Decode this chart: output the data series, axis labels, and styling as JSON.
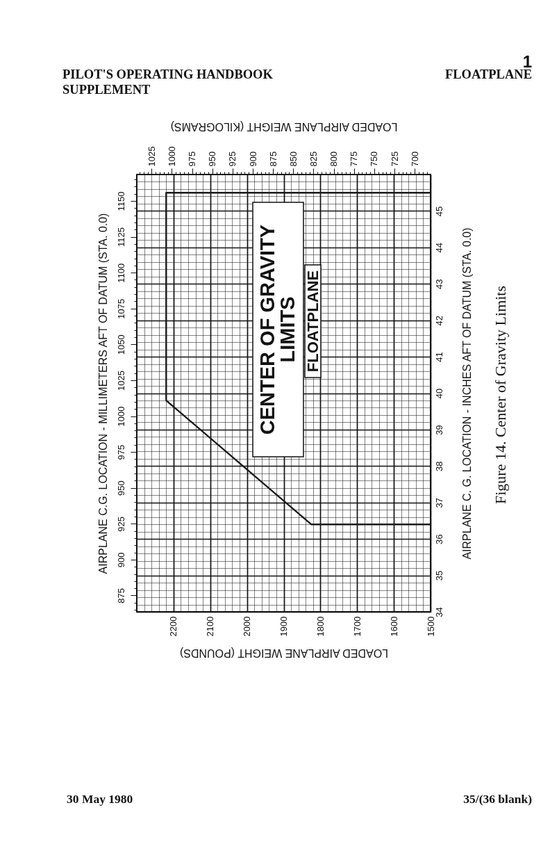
{
  "chart_data": {
    "type": "line",
    "title": "CENTER OF GRAVITY LIMITS",
    "subtitle": "FLOATPLANE",
    "xlabel": "LOADED AIRPLANE WEIGHT (POUNDS)",
    "x2label": "LOADED AIRPLANE WEIGHT (KILOGRAMS)",
    "ylabel": "AIRPLANE C.G. LOCATION - MILLIMETERS AFT OF DATUM (STA. 0.0)",
    "y2label": "AIRPLANE C. G. LOCATION - INCHES AFT OF DATUM (STA. 0.0)",
    "annotations": [
      "1",
      "PILOT'S OPERATING HANDBOOK SUPPLEMENT",
      "FLOATPLANE",
      "Figure 14.  Center of Gravity Limits",
      "30 May 1980",
      "35/(36 blank)"
    ],
    "series": [
      {
        "x": [
          1500,
          1825,
          2220,
          2220,
          1500
        ],
        "values": [
          36.4,
          36.4,
          39.8,
          45.5,
          45.5
        ],
        "color": "#1a1a1a",
        "axis": "y2"
      }
    ],
    "xlim": [
      2300,
      1500
    ],
    "xticks": [
      {
        "value": 2280,
        "label": null
      },
      {
        "value": 2260,
        "label": null
      },
      {
        "value": 2240,
        "label": null
      },
      {
        "value": 2220,
        "label": null
      },
      2200,
      {
        "value": 2180,
        "label": null
      },
      {
        "value": 2160,
        "label": null
      },
      {
        "value": 2140,
        "label": null
      },
      {
        "value": 2120,
        "label": null
      },
      2100,
      {
        "value": 2080,
        "label": null
      },
      {
        "value": 2060,
        "label": null
      },
      {
        "value": 2040,
        "label": null
      },
      {
        "value": 2020,
        "label": null
      },
      2000,
      {
        "value": 1980,
        "label": null
      },
      {
        "value": 1960,
        "label": null
      },
      {
        "value": 1940,
        "label": null
      },
      {
        "value": 1920,
        "label": null
      },
      1900,
      {
        "value": 1880,
        "label": null
      },
      {
        "value": 1860,
        "label": null
      },
      {
        "value": 1840,
        "label": null
      },
      {
        "value": 1820,
        "label": null
      },
      1800,
      {
        "value": 1780,
        "label": null
      },
      {
        "value": 1760,
        "label": null
      },
      {
        "value": 1740,
        "label": null
      },
      {
        "value": 1720,
        "label": null
      },
      1700,
      {
        "value": 1680,
        "label": null
      },
      {
        "value": 1660,
        "label": null
      },
      {
        "value": 1640,
        "label": null
      },
      {
        "value": 1620,
        "label": null
      },
      1600,
      {
        "value": 1580,
        "label": null
      },
      {
        "value": 1560,
        "label": null
      },
      {
        "value": 1540,
        "label": null
      },
      {
        "value": 1520,
        "label": null
      },
      1500
    ],
    "x2lim": [
      1043.3,
      680.4
    ],
    "x2ticks": [
      {
        "value": 1040,
        "label": null
      },
      {
        "value": 1035,
        "label": null
      },
      {
        "value": 1030,
        "label": null
      },
      1025,
      {
        "value": 1020,
        "label": null
      },
      {
        "value": 1015,
        "label": null
      },
      {
        "value": 1010,
        "label": null
      },
      {
        "value": 1005,
        "label": null
      },
      1000,
      {
        "value": 995,
        "label": null
      },
      {
        "value": 990,
        "label": null
      },
      {
        "value": 985,
        "label": null
      },
      {
        "value": 980,
        "label": null
      },
      975,
      {
        "value": 970,
        "label": null
      },
      {
        "value": 965,
        "label": null
      },
      {
        "value": 960,
        "label": null
      },
      {
        "value": 955,
        "label": null
      },
      950,
      {
        "value": 945,
        "label": null
      },
      {
        "value": 940,
        "label": null
      },
      {
        "value": 935,
        "label": null
      },
      {
        "value": 930,
        "label": null
      },
      925,
      {
        "value": 920,
        "label": null
      },
      {
        "value": 915,
        "label": null
      },
      {
        "value": 910,
        "label": null
      },
      {
        "value": 905,
        "label": null
      },
      900,
      {
        "value": 895,
        "label": null
      },
      {
        "value": 890,
        "label": null
      },
      {
        "value": 885,
        "label": null
      },
      {
        "value": 880,
        "label": null
      },
      875,
      {
        "value": 870,
        "label": null
      },
      {
        "value": 865,
        "label": null
      },
      {
        "value": 860,
        "label": null
      },
      {
        "value": 855,
        "label": null
      },
      850,
      {
        "value": 845,
        "label": null
      },
      {
        "value": 840,
        "label": null
      },
      {
        "value": 835,
        "label": null
      },
      {
        "value": 830,
        "label": null
      },
      825,
      {
        "value": 820,
        "label": null
      },
      {
        "value": 815,
        "label": null
      },
      {
        "value": 810,
        "label": null
      },
      {
        "value": 805,
        "label": null
      },
      800,
      {
        "value": 795,
        "label": null
      },
      {
        "value": 790,
        "label": null
      },
      {
        "value": 785,
        "label": null
      },
      {
        "value": 780,
        "label": null
      },
      775,
      {
        "value": 770,
        "label": null
      },
      {
        "value": 765,
        "label": null
      },
      {
        "value": 760,
        "label": null
      },
      {
        "value": 755,
        "label": null
      },
      750,
      {
        "value": 745,
        "label": null
      },
      {
        "value": 740,
        "label": null
      },
      {
        "value": 735,
        "label": null
      },
      {
        "value": 730,
        "label": null
      },
      725,
      {
        "value": 720,
        "label": null
      },
      {
        "value": 715,
        "label": null
      },
      {
        "value": 710,
        "label": null
      },
      {
        "value": 705,
        "label": null
      },
      700,
      {
        "value": 695,
        "label": null
      },
      {
        "value": 690,
        "label": null
      },
      {
        "value": 685,
        "label": null
      }
    ],
    "ylim": [
      863.6,
      1168.4
    ],
    "yticks": [
      {
        "value": 865,
        "label": null
      },
      {
        "value": 870,
        "label": null
      },
      875,
      {
        "value": 880,
        "label": null
      },
      {
        "value": 885,
        "label": null
      },
      {
        "value": 890,
        "label": null
      },
      {
        "value": 895,
        "label": null
      },
      900,
      {
        "value": 905,
        "label": null
      },
      {
        "value": 910,
        "label": null
      },
      {
        "value": 915,
        "label": null
      },
      {
        "value": 920,
        "label": null
      },
      925,
      {
        "value": 930,
        "label": null
      },
      {
        "value": 935,
        "label": null
      },
      {
        "value": 940,
        "label": null
      },
      {
        "value": 945,
        "label": null
      },
      950,
      {
        "value": 955,
        "label": null
      },
      {
        "value": 960,
        "label": null
      },
      {
        "value": 965,
        "label": null
      },
      {
        "value": 970,
        "label": null
      },
      975,
      {
        "value": 980,
        "label": null
      },
      {
        "value": 985,
        "label": null
      },
      {
        "value": 990,
        "label": null
      },
      {
        "value": 995,
        "label": null
      },
      1000,
      {
        "value": 1005,
        "label": null
      },
      {
        "value": 1010,
        "label": null
      },
      {
        "value": 1015,
        "label": null
      },
      {
        "value": 1020,
        "label": null
      },
      1025,
      {
        "value": 1030,
        "label": null
      },
      {
        "value": 1035,
        "label": null
      },
      {
        "value": 1040,
        "label": null
      },
      {
        "value": 1045,
        "label": null
      },
      1050,
      {
        "value": 1055,
        "label": null
      },
      {
        "value": 1060,
        "label": null
      },
      {
        "value": 1065,
        "label": null
      },
      {
        "value": 1070,
        "label": null
      },
      1075,
      {
        "value": 1080,
        "label": null
      },
      {
        "value": 1085,
        "label": null
      },
      {
        "value": 1090,
        "label": null
      },
      {
        "value": 1095,
        "label": null
      },
      1100,
      {
        "value": 1105,
        "label": null
      },
      {
        "value": 1110,
        "label": null
      },
      {
        "value": 1115,
        "label": null
      },
      {
        "value": 1120,
        "label": null
      },
      1125,
      {
        "value": 1130,
        "label": null
      },
      {
        "value": 1135,
        "label": null
      },
      {
        "value": 1140,
        "label": null
      },
      {
        "value": 1145,
        "label": null
      },
      1150,
      {
        "value": 1155,
        "label": null
      },
      {
        "value": 1160,
        "label": null
      },
      {
        "value": 1165,
        "label": null
      }
    ],
    "y2lim": [
      34,
      46
    ],
    "y2ticks": [
      34,
      {
        "value": 34.2,
        "label": null
      },
      {
        "value": 34.4,
        "label": null
      },
      {
        "value": 34.6,
        "label": null
      },
      {
        "value": 34.8,
        "label": null
      },
      35,
      {
        "value": 35.2,
        "label": null
      },
      {
        "value": 35.4,
        "label": null
      },
      {
        "value": 35.6,
        "label": null
      },
      {
        "value": 35.8,
        "label": null
      },
      36,
      {
        "value": 36.2,
        "label": null
      },
      {
        "value": 36.4,
        "label": null
      },
      {
        "value": 36.6,
        "label": null
      },
      {
        "value": 36.8,
        "label": null
      },
      37,
      {
        "value": 37.2,
        "label": null
      },
      {
        "value": 37.4,
        "label": null
      },
      {
        "value": 37.6,
        "label": null
      },
      {
        "value": 37.8,
        "label": null
      },
      38,
      {
        "value": 38.2,
        "label": null
      },
      {
        "value": 38.4,
        "label": null
      },
      {
        "value": 38.6,
        "label": null
      },
      {
        "value": 38.8,
        "label": null
      },
      39,
      {
        "value": 39.2,
        "label": null
      },
      {
        "value": 39.4,
        "label": null
      },
      {
        "value": 39.6,
        "label": null
      },
      {
        "value": 39.8,
        "label": null
      },
      40,
      {
        "value": 40.2,
        "label": null
      },
      {
        "value": 40.4,
        "label": null
      },
      {
        "value": 40.6,
        "label": null
      },
      {
        "value": 40.8,
        "label": null
      },
      41,
      {
        "value": 41.2,
        "label": null
      },
      {
        "value": 41.4,
        "label": null
      },
      {
        "value": 41.6,
        "label": null
      },
      {
        "value": 41.8,
        "label": null
      },
      42,
      {
        "value": 42.2,
        "label": null
      },
      {
        "value": 42.4,
        "label": null
      },
      {
        "value": 42.6,
        "label": null
      },
      {
        "value": 42.8,
        "label": null
      },
      43,
      {
        "value": 43.2,
        "label": null
      },
      {
        "value": 43.4,
        "label": null
      },
      {
        "value": 43.6,
        "label": null
      },
      {
        "value": 43.8,
        "label": null
      },
      44,
      {
        "value": 44.2,
        "label": null
      },
      {
        "value": 44.4,
        "label": null
      },
      {
        "value": 44.6,
        "label": null
      },
      {
        "value": 44.8,
        "label": null
      },
      45,
      {
        "value": 45.2,
        "label": null
      },
      {
        "value": 45.4,
        "label": null
      },
      {
        "value": 45.6,
        "label": null
      },
      {
        "value": 45.8,
        "label": null
      }
    ],
    "grid": true,
    "line_style": "solid"
  }
}
